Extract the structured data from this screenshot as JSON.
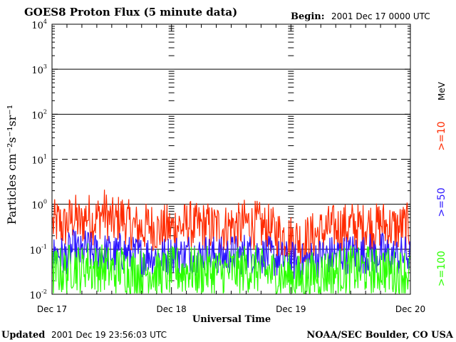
{
  "header": {
    "title": "GOES8 Proton Flux (5 minute data)",
    "begin_label": "Begin:",
    "begin_value": "2001 Dec 17 0000 UTC"
  },
  "footer": {
    "updated_label": "Updated",
    "updated_value": "2001 Dec 19 23:56:03 UTC",
    "credit": "NOAA/SEC Boulder, CO USA"
  },
  "legend": {
    "unit": "MeV",
    "entries": [
      {
        "label": ">=10",
        "color": "#ff2a00"
      },
      {
        "label": ">=50",
        "color": "#2a14ff"
      },
      {
        "label": ">=100",
        "color": "#2aff00"
      }
    ]
  },
  "chart_data": {
    "type": "line",
    "title": "GOES8 Proton Flux (5 minute data)",
    "xlabel": "Universal Time",
    "ylabel": "Particles cm⁻²s⁻¹sr⁻¹",
    "yscale": "log",
    "ylim": [
      0.01,
      10000
    ],
    "xlim_days": [
      0,
      3
    ],
    "x_ticks": [
      {
        "day": 0,
        "label": "Dec 17"
      },
      {
        "day": 1,
        "label": "Dec 18"
      },
      {
        "day": 2,
        "label": "Dec 19"
      },
      {
        "day": 3,
        "label": "Dec 20"
      }
    ],
    "y_ticks": [
      {
        "value": 0.01,
        "base": "10",
        "exp": "-2"
      },
      {
        "value": 0.1,
        "base": "10",
        "exp": "-1"
      },
      {
        "value": 1,
        "base": "10",
        "exp": "0"
      },
      {
        "value": 10,
        "base": "10",
        "exp": "1"
      },
      {
        "value": 100,
        "base": "10",
        "exp": "2"
      },
      {
        "value": 1000,
        "base": "10",
        "exp": "3"
      },
      {
        "value": 10000,
        "base": "10",
        "exp": "4"
      }
    ],
    "hlines": [
      {
        "value": 1,
        "style": "solid"
      },
      {
        "value": 10,
        "style": "dashed"
      },
      {
        "value": 100,
        "style": "solid"
      },
      {
        "value": 1000,
        "style": "solid"
      },
      {
        "value": 0.1,
        "style": "solid"
      }
    ],
    "series": [
      {
        "name": ">=10 MeV",
        "color": "#ff2a00",
        "values": [
          0.35,
          0.4,
          0.3,
          0.45,
          0.5,
          0.32,
          0.6,
          0.42,
          0.5,
          0.7,
          0.45,
          0.38,
          0.55,
          0.4,
          0.32,
          0.3,
          0.28,
          0.35,
          0.3,
          0.25,
          0.3,
          0.28,
          0.35,
          0.3,
          0.38,
          0.3,
          0.32,
          0.35,
          0.3,
          0.32,
          0.28,
          0.32,
          0.35,
          0.3,
          0.4,
          0.33,
          0.36,
          0.3,
          0.3,
          0.25,
          0.22,
          0.2,
          0.18,
          0.17,
          0.16,
          0.17,
          0.2,
          0.22,
          0.25,
          0.3,
          0.28,
          0.32,
          0.3,
          0.35,
          0.3,
          0.32,
          0.36,
          0.3,
          0.38,
          0.32,
          0.3,
          0.28,
          0.32,
          0.3
        ]
      },
      {
        "name": ">=50 MeV",
        "color": "#2a14ff",
        "values": [
          0.07,
          0.08,
          0.065,
          0.09,
          0.1,
          0.075,
          0.11,
          0.08,
          0.09,
          0.085,
          0.08,
          0.075,
          0.09,
          0.08,
          0.07,
          0.075,
          0.068,
          0.08,
          0.07,
          0.065,
          0.07,
          0.075,
          0.08,
          0.07,
          0.085,
          0.075,
          0.07,
          0.08,
          0.072,
          0.078,
          0.068,
          0.075,
          0.08,
          0.07,
          0.09,
          0.078,
          0.082,
          0.07,
          0.072,
          0.065,
          0.06,
          0.058,
          0.055,
          0.052,
          0.05,
          0.055,
          0.06,
          0.065,
          0.07,
          0.075,
          0.07,
          0.08,
          0.075,
          0.085,
          0.072,
          0.078,
          0.085,
          0.07,
          0.09,
          0.075,
          0.07,
          0.068,
          0.075,
          0.07
        ]
      },
      {
        "name": ">=100 MeV",
        "color": "#2aff00",
        "values": [
          0.03,
          0.035,
          0.03,
          0.04,
          0.045,
          0.032,
          0.05,
          0.035,
          0.04,
          0.038,
          0.035,
          0.03,
          0.04,
          0.035,
          0.03,
          0.032,
          0.028,
          0.035,
          0.03,
          0.028,
          0.03,
          0.032,
          0.035,
          0.03,
          0.038,
          0.032,
          0.03,
          0.035,
          0.03,
          0.034,
          0.028,
          0.032,
          0.035,
          0.03,
          0.04,
          0.034,
          0.036,
          0.03,
          0.031,
          0.028,
          0.026,
          0.025,
          0.024,
          0.023,
          0.022,
          0.024,
          0.026,
          0.028,
          0.03,
          0.032,
          0.03,
          0.035,
          0.032,
          0.037,
          0.031,
          0.034,
          0.037,
          0.03,
          0.04,
          0.033,
          0.03,
          0.029,
          0.032,
          0.03
        ]
      }
    ]
  }
}
